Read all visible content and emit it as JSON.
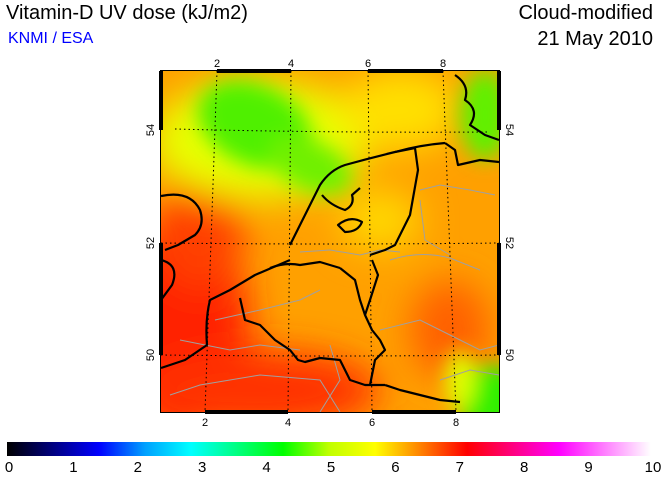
{
  "header": {
    "title": "Vitamin-D UV dose (kJ/m2)",
    "source": "KNMI / ESA",
    "mode": "Cloud-modified",
    "date": "21 May 2010"
  },
  "map": {
    "lon_ticks_top": [
      "2",
      "4",
      "6",
      "8"
    ],
    "lon_ticks_bottom": [
      "2",
      "4",
      "6",
      "8"
    ],
    "lat_ticks_left": [
      "54",
      "52",
      "50"
    ],
    "lat_ticks_right": [
      "54",
      "52",
      "50"
    ]
  },
  "colorbar": {
    "ticks": [
      "0",
      "1",
      "2",
      "3",
      "4",
      "5",
      "6",
      "7",
      "8",
      "9",
      "10"
    ],
    "colors": [
      "#000000",
      "#000080",
      "#0000ff",
      "#00a0ff",
      "#00ffff",
      "#00ff80",
      "#00ff00",
      "#c0ff00",
      "#ffff00",
      "#ff8000",
      "#ff0000",
      "#ff0080",
      "#ff00ff",
      "#ff80ff",
      "#ffffff"
    ]
  }
}
